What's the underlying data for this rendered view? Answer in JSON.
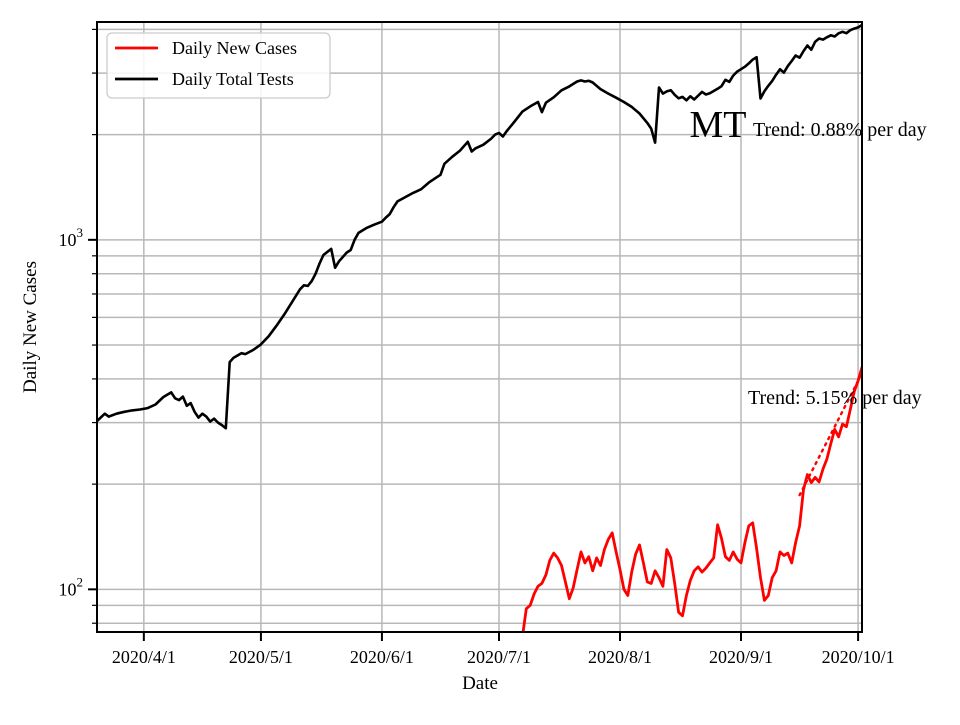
{
  "figure": {
    "background": "#ffffff",
    "grid_color": "#b8b8b8"
  },
  "legend": {
    "items": [
      {
        "label": "Daily New Cases",
        "color": "#ff0000"
      },
      {
        "label": "Daily Total Tests",
        "color": "#000000"
      }
    ]
  },
  "annotations": {
    "state_code": "MT",
    "tests_trend": "Trend: 0.88% per day",
    "cases_trend": "Trend: 5.15% per day"
  },
  "chart_data": {
    "type": "line",
    "xlabel": "Date",
    "ylabel": "Daily New Cases",
    "y_scale": "log",
    "grid": true,
    "legend_position": "upper-left",
    "x_range": [
      "2020-03-20",
      "2020-10-02"
    ],
    "ylim": [
      75.5,
      4200
    ],
    "x_ticks": [
      {
        "date": "2020-04-01",
        "label": "2020/4/1"
      },
      {
        "date": "2020-05-01",
        "label": "2020/5/1"
      },
      {
        "date": "2020-06-01",
        "label": "2020/6/1"
      },
      {
        "date": "2020-07-01",
        "label": "2020/7/1"
      },
      {
        "date": "2020-08-01",
        "label": "2020/8/1"
      },
      {
        "date": "2020-09-01",
        "label": "2020/9/1"
      },
      {
        "date": "2020-10-01",
        "label": "2020/10/1"
      }
    ],
    "y_ticks_major": [
      {
        "value": 100,
        "base": "10",
        "exp": "2"
      },
      {
        "value": 1000,
        "base": "10",
        "exp": "3"
      }
    ],
    "y_gridlines_minor": [
      80,
      90,
      200,
      300,
      400,
      500,
      600,
      700,
      800,
      900,
      2000,
      3000,
      4000
    ],
    "series": [
      {
        "name": "Daily Total Tests",
        "color": "#000000",
        "style": "solid",
        "width": 2.6,
        "points": [
          [
            "2020-03-20",
            303
          ],
          [
            "2020-03-22",
            318
          ],
          [
            "2020-03-23",
            312
          ],
          [
            "2020-03-25",
            318
          ],
          [
            "2020-03-27",
            322
          ],
          [
            "2020-03-29",
            325
          ],
          [
            "2020-03-31",
            327
          ],
          [
            "2020-04-02",
            330
          ],
          [
            "2020-04-04",
            338
          ],
          [
            "2020-04-06",
            355
          ],
          [
            "2020-04-08",
            366
          ],
          [
            "2020-04-09",
            352
          ],
          [
            "2020-04-10",
            348
          ],
          [
            "2020-04-11",
            356
          ],
          [
            "2020-04-12",
            335
          ],
          [
            "2020-04-13",
            341
          ],
          [
            "2020-04-14",
            322
          ],
          [
            "2020-04-15",
            310
          ],
          [
            "2020-04-16",
            318
          ],
          [
            "2020-04-17",
            312
          ],
          [
            "2020-04-18",
            302
          ],
          [
            "2020-04-19",
            308
          ],
          [
            "2020-04-20",
            300
          ],
          [
            "2020-04-21",
            295
          ],
          [
            "2020-04-22",
            289
          ],
          [
            "2020-04-23",
            447
          ],
          [
            "2020-04-24",
            460
          ],
          [
            "2020-04-26",
            474
          ],
          [
            "2020-04-27",
            471
          ],
          [
            "2020-04-29",
            484
          ],
          [
            "2020-05-01",
            502
          ],
          [
            "2020-05-03",
            530
          ],
          [
            "2020-05-05",
            568
          ],
          [
            "2020-05-07",
            612
          ],
          [
            "2020-05-09",
            665
          ],
          [
            "2020-05-11",
            722
          ],
          [
            "2020-05-12",
            741
          ],
          [
            "2020-05-13",
            738
          ],
          [
            "2020-05-14",
            762
          ],
          [
            "2020-05-15",
            800
          ],
          [
            "2020-05-16",
            855
          ],
          [
            "2020-05-17",
            905
          ],
          [
            "2020-05-19",
            942
          ],
          [
            "2020-05-20",
            832
          ],
          [
            "2020-05-21",
            868
          ],
          [
            "2020-05-23",
            920
          ],
          [
            "2020-05-24",
            935
          ],
          [
            "2020-05-25",
            1000
          ],
          [
            "2020-05-26",
            1047
          ],
          [
            "2020-05-28",
            1080
          ],
          [
            "2020-05-30",
            1105
          ],
          [
            "2020-06-01",
            1127
          ],
          [
            "2020-06-02",
            1158
          ],
          [
            "2020-06-03",
            1185
          ],
          [
            "2020-06-04",
            1240
          ],
          [
            "2020-06-05",
            1288
          ],
          [
            "2020-06-07",
            1325
          ],
          [
            "2020-06-09",
            1362
          ],
          [
            "2020-06-11",
            1395
          ],
          [
            "2020-06-13",
            1458
          ],
          [
            "2020-06-15",
            1510
          ],
          [
            "2020-06-16",
            1535
          ],
          [
            "2020-06-17",
            1650
          ],
          [
            "2020-06-19",
            1728
          ],
          [
            "2020-06-21",
            1800
          ],
          [
            "2020-06-23",
            1908
          ],
          [
            "2020-06-24",
            1790
          ],
          [
            "2020-06-25",
            1828
          ],
          [
            "2020-06-27",
            1872
          ],
          [
            "2020-06-29",
            1948
          ],
          [
            "2020-06-30",
            2000
          ],
          [
            "2020-07-01",
            2022
          ],
          [
            "2020-07-02",
            1975
          ],
          [
            "2020-07-03",
            2048
          ],
          [
            "2020-07-05",
            2180
          ],
          [
            "2020-07-07",
            2328
          ],
          [
            "2020-07-09",
            2408
          ],
          [
            "2020-07-11",
            2480
          ],
          [
            "2020-07-12",
            2320
          ],
          [
            "2020-07-13",
            2468
          ],
          [
            "2020-07-15",
            2558
          ],
          [
            "2020-07-17",
            2678
          ],
          [
            "2020-07-19",
            2748
          ],
          [
            "2020-07-21",
            2838
          ],
          [
            "2020-07-22",
            2858
          ],
          [
            "2020-07-23",
            2838
          ],
          [
            "2020-07-24",
            2852
          ],
          [
            "2020-07-25",
            2820
          ],
          [
            "2020-07-27",
            2700
          ],
          [
            "2020-07-29",
            2620
          ],
          [
            "2020-07-31",
            2550
          ],
          [
            "2020-08-02",
            2480
          ],
          [
            "2020-08-04",
            2400
          ],
          [
            "2020-08-06",
            2298
          ],
          [
            "2020-08-08",
            2160
          ],
          [
            "2020-08-09",
            2080
          ],
          [
            "2020-08-10",
            1898
          ],
          [
            "2020-08-11",
            2728
          ],
          [
            "2020-08-12",
            2620
          ],
          [
            "2020-08-13",
            2658
          ],
          [
            "2020-08-14",
            2680
          ],
          [
            "2020-08-15",
            2600
          ],
          [
            "2020-08-16",
            2540
          ],
          [
            "2020-08-17",
            2565
          ],
          [
            "2020-08-18",
            2508
          ],
          [
            "2020-08-19",
            2575
          ],
          [
            "2020-08-20",
            2520
          ],
          [
            "2020-08-21",
            2585
          ],
          [
            "2020-08-22",
            2650
          ],
          [
            "2020-08-23",
            2605
          ],
          [
            "2020-08-24",
            2625
          ],
          [
            "2020-08-25",
            2665
          ],
          [
            "2020-08-26",
            2705
          ],
          [
            "2020-08-27",
            2752
          ],
          [
            "2020-08-28",
            2870
          ],
          [
            "2020-08-29",
            2830
          ],
          [
            "2020-08-30",
            2950
          ],
          [
            "2020-08-31",
            3030
          ],
          [
            "2020-09-01",
            3078
          ],
          [
            "2020-09-02",
            3128
          ],
          [
            "2020-09-03",
            3198
          ],
          [
            "2020-09-04",
            3278
          ],
          [
            "2020-09-05",
            3330
          ],
          [
            "2020-09-06",
            2538
          ],
          [
            "2020-09-07",
            2660
          ],
          [
            "2020-09-08",
            2758
          ],
          [
            "2020-09-09",
            2850
          ],
          [
            "2020-09-10",
            2968
          ],
          [
            "2020-09-11",
            3078
          ],
          [
            "2020-09-12",
            3010
          ],
          [
            "2020-09-13",
            3140
          ],
          [
            "2020-09-14",
            3248
          ],
          [
            "2020-09-15",
            3368
          ],
          [
            "2020-09-16",
            3320
          ],
          [
            "2020-09-17",
            3468
          ],
          [
            "2020-09-18",
            3598
          ],
          [
            "2020-09-19",
            3500
          ],
          [
            "2020-09-20",
            3688
          ],
          [
            "2020-09-21",
            3768
          ],
          [
            "2020-09-22",
            3740
          ],
          [
            "2020-09-23",
            3798
          ],
          [
            "2020-09-24",
            3848
          ],
          [
            "2020-09-25",
            3818
          ],
          [
            "2020-09-26",
            3898
          ],
          [
            "2020-09-27",
            3938
          ],
          [
            "2020-09-28",
            3900
          ],
          [
            "2020-09-29",
            3978
          ],
          [
            "2020-09-30",
            4020
          ],
          [
            "2020-10-01",
            4052
          ],
          [
            "2020-10-02",
            4118
          ]
        ]
      },
      {
        "name": "Daily New Cases",
        "color": "#ff0000",
        "style": "solid",
        "width": 2.8,
        "points": [
          [
            "2020-07-07",
            73
          ],
          [
            "2020-07-08",
            88
          ],
          [
            "2020-07-09",
            90
          ],
          [
            "2020-07-10",
            97
          ],
          [
            "2020-07-11",
            102
          ],
          [
            "2020-07-12",
            104
          ],
          [
            "2020-07-13",
            110
          ],
          [
            "2020-07-14",
            121
          ],
          [
            "2020-07-15",
            127
          ],
          [
            "2020-07-16",
            123
          ],
          [
            "2020-07-17",
            117
          ],
          [
            "2020-07-18",
            105
          ],
          [
            "2020-07-19",
            94
          ],
          [
            "2020-07-20",
            101
          ],
          [
            "2020-07-21",
            114
          ],
          [
            "2020-07-22",
            128
          ],
          [
            "2020-07-23",
            119
          ],
          [
            "2020-07-24",
            124
          ],
          [
            "2020-07-25",
            113
          ],
          [
            "2020-07-26",
            123
          ],
          [
            "2020-07-27",
            117
          ],
          [
            "2020-07-28",
            130
          ],
          [
            "2020-07-29",
            139
          ],
          [
            "2020-07-30",
            145
          ],
          [
            "2020-07-31",
            128
          ],
          [
            "2020-08-01",
            114
          ],
          [
            "2020-08-02",
            100
          ],
          [
            "2020-08-03",
            96
          ],
          [
            "2020-08-04",
            112
          ],
          [
            "2020-08-05",
            126
          ],
          [
            "2020-08-06",
            134
          ],
          [
            "2020-08-07",
            119
          ],
          [
            "2020-08-08",
            105
          ],
          [
            "2020-08-09",
            104
          ],
          [
            "2020-08-10",
            113
          ],
          [
            "2020-08-11",
            108
          ],
          [
            "2020-08-12",
            102
          ],
          [
            "2020-08-13",
            130
          ],
          [
            "2020-08-14",
            123
          ],
          [
            "2020-08-15",
            104
          ],
          [
            "2020-08-16",
            86
          ],
          [
            "2020-08-17",
            84
          ],
          [
            "2020-08-18",
            96
          ],
          [
            "2020-08-19",
            106
          ],
          [
            "2020-08-20",
            113
          ],
          [
            "2020-08-21",
            116
          ],
          [
            "2020-08-22",
            112
          ],
          [
            "2020-08-23",
            115
          ],
          [
            "2020-08-24",
            119
          ],
          [
            "2020-08-25",
            123
          ],
          [
            "2020-08-26",
            153
          ],
          [
            "2020-08-27",
            140
          ],
          [
            "2020-08-28",
            124
          ],
          [
            "2020-08-29",
            121
          ],
          [
            "2020-08-30",
            128
          ],
          [
            "2020-08-31",
            122
          ],
          [
            "2020-09-01",
            119
          ],
          [
            "2020-09-02",
            136
          ],
          [
            "2020-09-03",
            152
          ],
          [
            "2020-09-04",
            155
          ],
          [
            "2020-09-05",
            131
          ],
          [
            "2020-09-06",
            108
          ],
          [
            "2020-09-07",
            93
          ],
          [
            "2020-09-08",
            96
          ],
          [
            "2020-09-09",
            108
          ],
          [
            "2020-09-10",
            113
          ],
          [
            "2020-09-11",
            128
          ],
          [
            "2020-09-12",
            125
          ],
          [
            "2020-09-13",
            127
          ],
          [
            "2020-09-14",
            119
          ],
          [
            "2020-09-15",
            136
          ],
          [
            "2020-09-16",
            152
          ],
          [
            "2020-09-17",
            193
          ],
          [
            "2020-09-18",
            213
          ],
          [
            "2020-09-19",
            202
          ],
          [
            "2020-09-20",
            209
          ],
          [
            "2020-09-21",
            203
          ],
          [
            "2020-09-22",
            221
          ],
          [
            "2020-09-23",
            236
          ],
          [
            "2020-09-24",
            261
          ],
          [
            "2020-09-25",
            287
          ],
          [
            "2020-09-26",
            273
          ],
          [
            "2020-09-27",
            297
          ],
          [
            "2020-09-28",
            292
          ],
          [
            "2020-09-29",
            327
          ],
          [
            "2020-09-30",
            368
          ],
          [
            "2020-10-01",
            395
          ],
          [
            "2020-10-02",
            432
          ]
        ]
      },
      {
        "name": "Cases Trend (5.15%/day)",
        "color": "#ff0000",
        "style": "dotted",
        "width": 2.4,
        "points": [
          [
            "2020-09-16",
            186
          ],
          [
            "2020-10-02",
            415
          ]
        ]
      }
    ]
  }
}
